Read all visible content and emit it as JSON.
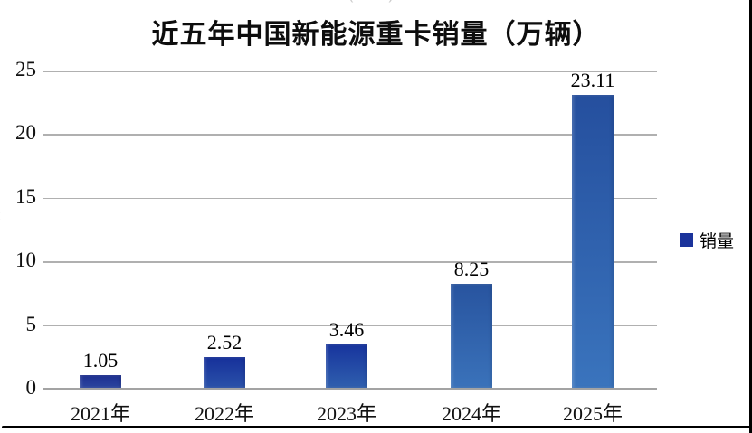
{
  "title": "近五年中国新能源重卡销量（万辆）",
  "legend": {
    "label": "销量",
    "swatch_color": "#1b339b"
  },
  "chart_data": {
    "type": "bar",
    "title": "近五年中国新能源重卡销量（万辆）",
    "series_name": "销量",
    "categories": [
      "2021年",
      "2022年",
      "2023年",
      "2024年",
      "2025年"
    ],
    "values": [
      1.05,
      2.52,
      3.46,
      8.25,
      23.11
    ],
    "value_labels": [
      "1.05",
      "2.52",
      "3.46",
      "8.25",
      "23.11"
    ],
    "xlabel": "",
    "ylabel": "",
    "ylim": [
      0,
      25
    ],
    "y_ticks": [
      0,
      5,
      10,
      15,
      20,
      25
    ],
    "grid": true,
    "legend_position": "right",
    "background_color": "#ffffff",
    "gridline_color": "#b0b0b0",
    "axis_line_color": "#a3a3a3",
    "bar_colors": [
      {
        "top": "#1d2f90",
        "bottom": "#2b459f"
      },
      {
        "top": "#16309a",
        "bottom": "#2a51a9"
      },
      {
        "top": "#17349d",
        "bottom": "#2f5fae"
      },
      {
        "top": "#28549f",
        "bottom": "#3a72ba"
      },
      {
        "top": "#254f9e",
        "bottom": "#3a74bd"
      }
    ]
  },
  "frame": {
    "border_color": "#000000"
  }
}
